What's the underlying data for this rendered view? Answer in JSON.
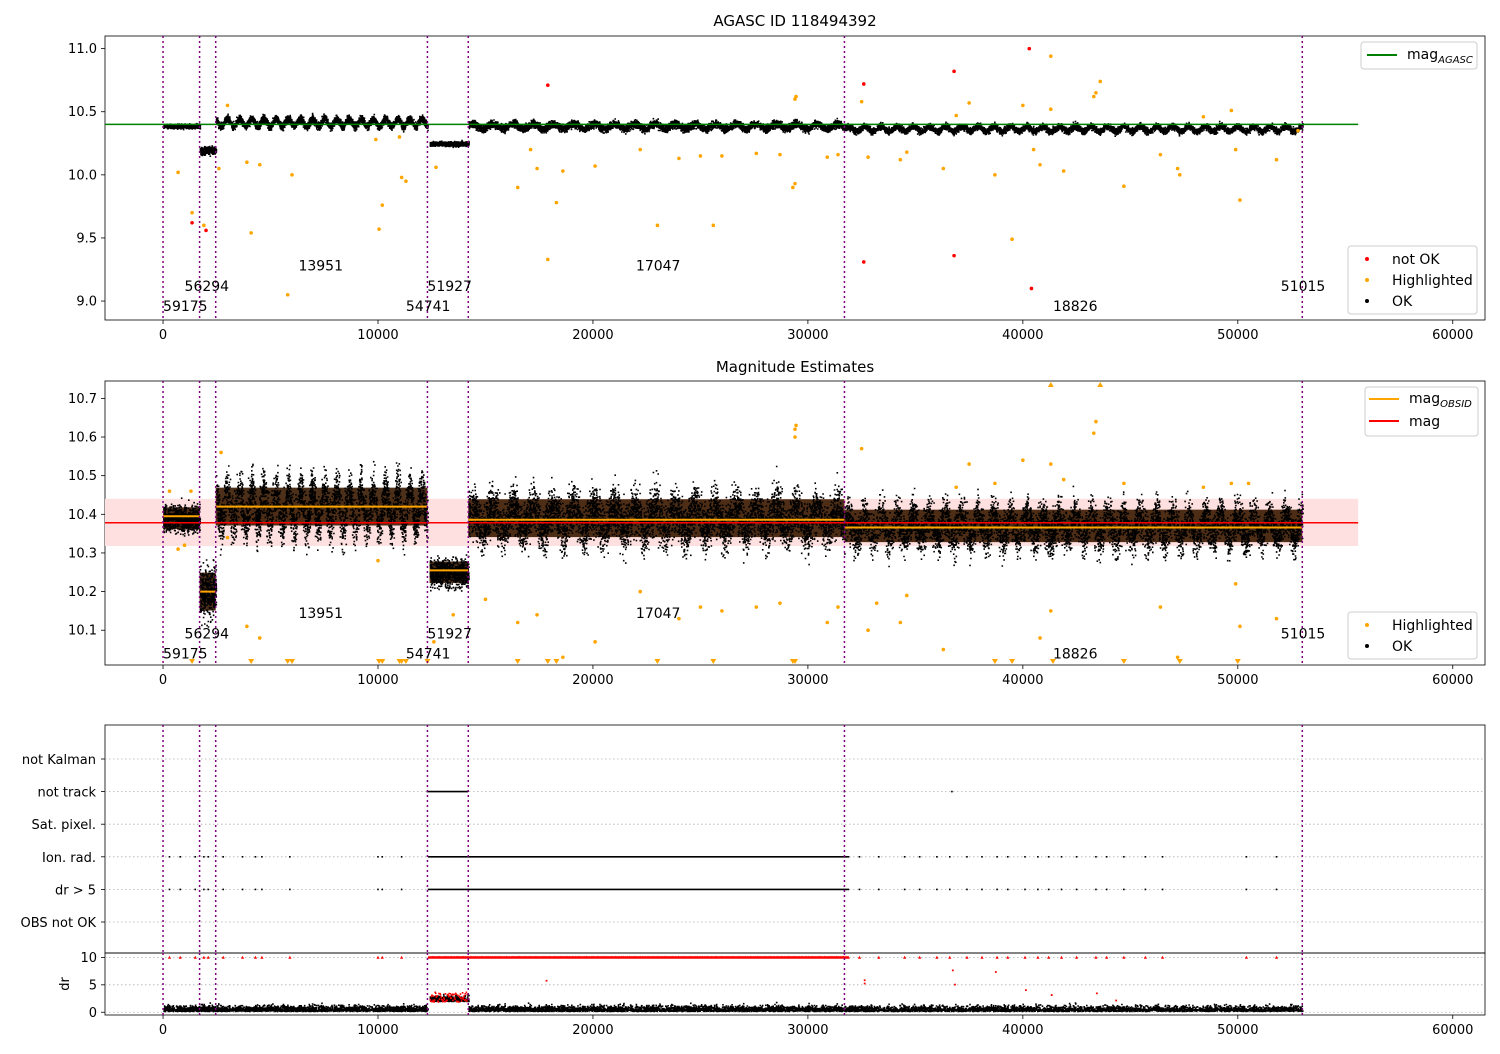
{
  "figure": {
    "title_top": "AGASC ID 118494392",
    "title_mid": "Magnitude Estimates"
  },
  "colors": {
    "ok": "#000000",
    "highlighted": "#ffa500",
    "not_ok": "#ff0000",
    "mag_agasc": "#008000",
    "mag_obsid": "#ffa500",
    "mag": "#ff0000",
    "band": "#ffe0e0",
    "obs_line": "#800080",
    "grid": "#b0b0b0"
  },
  "chart_data": [
    {
      "type": "scatter",
      "title": "AGASC ID 118494392",
      "xlim": [
        -2700,
        61500
      ],
      "ylim": [
        8.85,
        11.1
      ],
      "xticks": [
        0,
        10000,
        20000,
        30000,
        40000,
        50000,
        60000
      ],
      "yticks": [
        9.0,
        9.5,
        10.0,
        10.5,
        11.0
      ],
      "ytick_labels": [
        "9.0",
        "9.5",
        "10.0",
        "10.5",
        "11.0"
      ],
      "obs_boundaries": [
        0,
        1700,
        2450,
        12300,
        14200,
        31700,
        53000
      ],
      "observations": [
        {
          "obsid": "59175",
          "start": 0,
          "end": 1700,
          "mag": 10.39
        },
        {
          "obsid": "56294",
          "start": 1700,
          "end": 2450,
          "mag": 10.2
        },
        {
          "obsid": "13951",
          "start": 2450,
          "end": 12300,
          "mag": 10.42
        },
        {
          "obsid": "54741",
          "start": 12300,
          "end": 12400,
          "mag": 10.42
        },
        {
          "obsid": "51927",
          "start": 12400,
          "end": 14200,
          "mag": 10.25
        },
        {
          "obsid": "17047",
          "start": 14200,
          "end": 31700,
          "mag": 10.39
        },
        {
          "obsid": "18826",
          "start": 31700,
          "end": 53000,
          "mag": 10.37
        },
        {
          "obsid": "51015",
          "start": 52900,
          "end": 53000,
          "mag": 10.37
        }
      ],
      "obsid_labels": [
        {
          "text": "59175",
          "x": 0,
          "y": 8.96
        },
        {
          "text": "56294",
          "x": 1000,
          "y": 9.12
        },
        {
          "text": "13951",
          "x": 6300,
          "y": 9.28
        },
        {
          "text": "54741",
          "x": 11300,
          "y": 8.96
        },
        {
          "text": "51927",
          "x": 12300,
          "y": 9.12
        },
        {
          "text": "17047",
          "x": 22000,
          "y": 9.28
        },
        {
          "text": "18826",
          "x": 41400,
          "y": 8.96
        },
        {
          "text": "51015",
          "x": 52000,
          "y": 9.12
        }
      ],
      "lines": [
        {
          "name": "mag_AGASC",
          "y": 10.4,
          "x": [
            -2700,
            55600
          ]
        }
      ],
      "highlighted_points": [
        [
          700,
          10.02
        ],
        [
          1350,
          9.7
        ],
        [
          1900,
          9.6
        ],
        [
          2600,
          10.05
        ],
        [
          3000,
          10.55
        ],
        [
          3900,
          10.1
        ],
        [
          4100,
          9.54
        ],
        [
          4500,
          10.08
        ],
        [
          5800,
          9.05
        ],
        [
          6000,
          10.0
        ],
        [
          9900,
          10.28
        ],
        [
          10050,
          9.57
        ],
        [
          10200,
          9.76
        ],
        [
          11000,
          10.3
        ],
        [
          11100,
          9.98
        ],
        [
          11300,
          9.95
        ],
        [
          12700,
          10.06
        ],
        [
          16500,
          9.9
        ],
        [
          17100,
          10.2
        ],
        [
          17400,
          10.05
        ],
        [
          17900,
          9.33
        ],
        [
          18300,
          9.78
        ],
        [
          18600,
          10.03
        ],
        [
          20100,
          10.07
        ],
        [
          22200,
          10.2
        ],
        [
          23000,
          9.6
        ],
        [
          24000,
          10.13
        ],
        [
          25000,
          10.15
        ],
        [
          25600,
          9.6
        ],
        [
          26000,
          10.15
        ],
        [
          27600,
          10.17
        ],
        [
          28700,
          10.16
        ],
        [
          29300,
          9.9
        ],
        [
          29400,
          9.93
        ],
        [
          29400,
          10.6
        ],
        [
          29450,
          10.62
        ],
        [
          30900,
          10.14
        ],
        [
          31400,
          10.16
        ],
        [
          32500,
          10.58
        ],
        [
          32800,
          10.14
        ],
        [
          34300,
          10.12
        ],
        [
          34600,
          10.18
        ],
        [
          36300,
          10.05
        ],
        [
          36900,
          10.47
        ],
        [
          37500,
          10.57
        ],
        [
          38700,
          10.0
        ],
        [
          39500,
          9.49
        ],
        [
          40000,
          10.55
        ],
        [
          40500,
          10.2
        ],
        [
          40800,
          10.08
        ],
        [
          41300,
          10.52
        ],
        [
          41300,
          10.94
        ],
        [
          41900,
          10.03
        ],
        [
          43300,
          10.62
        ],
        [
          43400,
          10.65
        ],
        [
          43600,
          10.74
        ],
        [
          44700,
          9.91
        ],
        [
          46400,
          10.16
        ],
        [
          47200,
          10.05
        ],
        [
          47300,
          10.0
        ],
        [
          48400,
          10.46
        ],
        [
          49700,
          10.51
        ],
        [
          49900,
          10.2
        ],
        [
          50100,
          9.8
        ],
        [
          51800,
          10.12
        ],
        [
          52800,
          10.35
        ]
      ],
      "not_ok_points": [
        [
          1350,
          9.62
        ],
        [
          2000,
          9.56
        ],
        [
          17900,
          10.71
        ],
        [
          32600,
          10.72
        ],
        [
          32600,
          9.31
        ],
        [
          36800,
          10.82
        ],
        [
          36800,
          9.36
        ],
        [
          40300,
          11.0
        ],
        [
          40400,
          9.1
        ]
      ],
      "legend_lines": [
        "mag_AGASC"
      ],
      "legend_points": [
        "not OK",
        "Highlighted",
        "OK"
      ]
    },
    {
      "type": "scatter",
      "title": "Magnitude Estimates",
      "xlim": [
        -2700,
        61500
      ],
      "ylim": [
        10.01,
        10.745
      ],
      "xticks": [
        0,
        10000,
        20000,
        30000,
        40000,
        50000,
        60000
      ],
      "yticks": [
        10.1,
        10.2,
        10.3,
        10.4,
        10.5,
        10.6,
        10.7
      ],
      "ytick_labels": [
        "10.1",
        "10.2",
        "10.3",
        "10.4",
        "10.5",
        "10.6",
        "10.7"
      ],
      "mag": 10.378,
      "mag_band": [
        10.318,
        10.44
      ],
      "obsid_mags": [
        {
          "start": 0,
          "end": 1700,
          "mag": 10.395
        },
        {
          "start": 1700,
          "end": 2450,
          "mag": 10.2
        },
        {
          "start": 2450,
          "end": 12300,
          "mag": 10.42
        },
        {
          "start": 12400,
          "end": 14200,
          "mag": 10.255
        },
        {
          "start": 14200,
          "end": 31700,
          "mag": 10.386
        },
        {
          "start": 31700,
          "end": 53000,
          "mag": 10.366
        }
      ],
      "obsid_labels": [
        {
          "text": "59175",
          "x": 0,
          "y": 10.04
        },
        {
          "text": "56294",
          "x": 1000,
          "y": 10.092
        },
        {
          "text": "13951",
          "x": 6300,
          "y": 10.144
        },
        {
          "text": "54741",
          "x": 11300,
          "y": 10.04
        },
        {
          "text": "51927",
          "x": 12300,
          "y": 10.092
        },
        {
          "text": "17047",
          "x": 22000,
          "y": 10.144
        },
        {
          "text": "18826",
          "x": 41400,
          "y": 10.04
        },
        {
          "text": "51015",
          "x": 52000,
          "y": 10.092
        }
      ],
      "highlighted_points": [
        [
          300,
          10.46
        ],
        [
          700,
          10.31
        ],
        [
          1000,
          10.32
        ],
        [
          1300,
          10.46
        ],
        [
          2700,
          10.56
        ],
        [
          3000,
          10.34
        ],
        [
          3900,
          10.11
        ],
        [
          4500,
          10.08
        ],
        [
          10000,
          10.28
        ],
        [
          12600,
          10.07
        ],
        [
          13500,
          10.14
        ],
        [
          15000,
          10.18
        ],
        [
          16500,
          10.12
        ],
        [
          17400,
          10.14
        ],
        [
          18600,
          10.03
        ],
        [
          20100,
          10.07
        ],
        [
          22200,
          10.2
        ],
        [
          24000,
          10.13
        ],
        [
          25000,
          10.16
        ],
        [
          26000,
          10.15
        ],
        [
          27600,
          10.16
        ],
        [
          28700,
          10.17
        ],
        [
          29400,
          10.62
        ],
        [
          29450,
          10.63
        ],
        [
          29400,
          10.6
        ],
        [
          30900,
          10.12
        ],
        [
          31400,
          10.16
        ],
        [
          32500,
          10.57
        ],
        [
          32800,
          10.1
        ],
        [
          33200,
          10.17
        ],
        [
          34300,
          10.12
        ],
        [
          34600,
          10.19
        ],
        [
          36300,
          10.05
        ],
        [
          36900,
          10.47
        ],
        [
          37500,
          10.53
        ],
        [
          38700,
          10.48
        ],
        [
          40000,
          10.54
        ],
        [
          40800,
          10.08
        ],
        [
          41300,
          10.53
        ],
        [
          41300,
          10.15
        ],
        [
          41900,
          10.49
        ],
        [
          43300,
          10.61
        ],
        [
          43400,
          10.64
        ],
        [
          44700,
          10.48
        ],
        [
          46400,
          10.16
        ],
        [
          47200,
          10.03
        ],
        [
          48400,
          10.47
        ],
        [
          49700,
          10.48
        ],
        [
          49900,
          10.22
        ],
        [
          50100,
          10.11
        ],
        [
          51800,
          10.13
        ],
        [
          50500,
          10.48
        ]
      ],
      "clipped_low_x": [
        1350,
        4100,
        5800,
        6000,
        10050,
        10200,
        11000,
        11100,
        11300,
        12300,
        16500,
        17900,
        18300,
        23000,
        25600,
        29300,
        29400,
        38700,
        39500,
        41400,
        44700,
        47300,
        50000
      ],
      "clipped_high_x": [
        41300,
        43600
      ],
      "legend_lines": [
        "mag_OBSID",
        "mag"
      ],
      "legend_points": [
        "Highlighted",
        "OK"
      ]
    },
    {
      "type": "scatter",
      "title": "",
      "xlim": [
        -2700,
        61500
      ],
      "categories": [
        "not Kalman",
        "not track",
        "Sat. pixel.",
        "Ion. rad.",
        "dr > 5",
        "OBS not OK"
      ],
      "ylabel": "dr",
      "dr_yticks": [
        0,
        5,
        10
      ],
      "dr_ylim": [
        -0.5,
        10.8
      ],
      "not_track_x": [
        12300,
        12450,
        12600,
        12750,
        12900,
        13050,
        13200,
        13350,
        13500,
        13650,
        13800,
        13950,
        14100,
        31700,
        36700
      ],
      "flag_x": [
        300,
        800,
        1500,
        1900,
        2100,
        2800,
        3700,
        4300,
        4600,
        5900,
        10000,
        10200,
        11100,
        16600,
        17000,
        17800,
        18400,
        32400,
        33300,
        34500,
        35200,
        36000,
        36600,
        37400,
        38100,
        38800,
        39300,
        40100,
        40700,
        41200,
        41800,
        42500,
        43400,
        43900,
        44700,
        45700,
        46500,
        50400,
        51800
      ],
      "flag_dense_ranges": [
        [
          12350,
          31900
        ]
      ],
      "dr_high_points": [
        [
          17800,
          5.9
        ],
        [
          32600,
          5.4
        ],
        [
          32600,
          6.0
        ],
        [
          36700,
          7.8
        ],
        [
          36800,
          5.2
        ],
        [
          38700,
          7.5
        ],
        [
          40100,
          4.2
        ],
        [
          41300,
          3.3
        ],
        [
          43400,
          3.6
        ],
        [
          44300,
          2.3
        ]
      ]
    }
  ]
}
